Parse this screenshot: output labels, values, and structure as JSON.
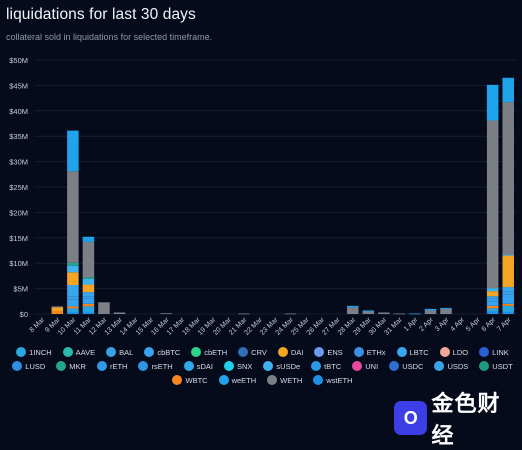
{
  "header": {
    "title": "liquidations for last 30 days",
    "subtitle": "collateral sold in liquidations for selected timeframe."
  },
  "watermark": {
    "logo_text": "O",
    "text": "金色财经"
  },
  "chart_data": {
    "type": "bar",
    "stacked": true,
    "title": "liquidations for last 30 days",
    "subtitle": "collateral sold in liquidations for selected timeframe.",
    "xlabel": "",
    "ylabel": "",
    "ylim": [
      0,
      50
    ],
    "yticks": [
      "$0",
      "$5M",
      "$10M",
      "$15M",
      "$20M",
      "$25M",
      "$30M",
      "$35M",
      "$40M",
      "$45M",
      "$50M"
    ],
    "ytick_values": [
      0,
      5,
      10,
      15,
      20,
      25,
      30,
      35,
      40,
      45,
      50
    ],
    "y_unit": "$M",
    "grid": true,
    "legend_position": "bottom",
    "categories": [
      "8 Mar",
      "9 Mar",
      "10 Mar",
      "11 Mar",
      "12 Mar",
      "13 Mar",
      "14 Mar",
      "15 Mar",
      "16 Mar",
      "17 Mar",
      "18 Mar",
      "19 Mar",
      "20 Mar",
      "21 Mar",
      "22 Mar",
      "23 Mar",
      "24 Mar",
      "25 Mar",
      "26 Mar",
      "27 Mar",
      "28 Mar",
      "29 Mar",
      "30 Mar",
      "31 Mar",
      "1 Apr",
      "2 Apr",
      "3 Apr",
      "4 Apr",
      "5 Apr",
      "6 Apr",
      "7 Apr"
    ],
    "series": [
      {
        "name": "wstETH",
        "color": "#1f8ee6",
        "values": [
          0,
          0,
          0.3,
          0.3,
          0,
          0,
          0,
          0,
          0,
          0,
          0,
          0,
          0,
          0,
          0,
          0,
          0,
          0,
          0,
          0,
          0,
          0,
          0,
          0,
          0,
          0,
          0,
          0,
          0,
          0.5,
          0.4
        ]
      },
      {
        "name": "1INCH",
        "color": "#2aa6e0",
        "values": [
          0,
          0,
          0.8,
          1.2,
          0,
          0,
          0,
          0,
          0,
          0,
          0,
          0,
          0,
          0,
          0,
          0,
          0,
          0,
          0,
          0,
          0,
          0,
          0,
          0,
          0,
          0,
          0,
          0,
          0,
          0.6,
          1.2
        ]
      },
      {
        "name": "WBTC",
        "color": "#f6841f",
        "values": [
          0,
          0.6,
          0.4,
          0.5,
          0,
          0,
          0,
          0,
          0,
          0,
          0,
          0,
          0,
          0,
          0,
          0,
          0,
          0,
          0,
          0,
          0,
          0,
          0,
          0,
          0,
          0,
          0,
          0,
          0,
          0.5,
          0.4
        ]
      },
      {
        "name": "cbBTC",
        "color": "#35a3f0",
        "values": [
          0,
          0,
          1.3,
          1.0,
          0,
          0,
          0,
          0,
          0,
          0,
          0,
          0,
          0,
          0,
          0,
          0,
          0,
          0,
          0,
          0,
          0,
          0,
          0,
          0,
          0,
          0,
          0,
          0,
          0,
          0.9,
          1.8
        ]
      },
      {
        "name": "BAL",
        "color": "#3aa2e8",
        "values": [
          0,
          0,
          0.7,
          0.5,
          0,
          0,
          0,
          0,
          0,
          0,
          0,
          0,
          0,
          0,
          0,
          0,
          0,
          0,
          0,
          0,
          0,
          0,
          0,
          0,
          0,
          0,
          0,
          0,
          0,
          0.6,
          0.6
        ]
      },
      {
        "name": "LBTC",
        "color": "#39a6ee",
        "values": [
          0,
          0,
          2.2,
          0.8,
          0,
          0,
          0,
          0,
          0,
          0,
          0,
          0,
          0,
          0,
          0,
          0,
          0,
          0,
          0,
          0,
          0,
          0,
          0,
          0,
          0,
          0,
          0,
          0,
          0,
          0.4,
          0.9
        ]
      },
      {
        "name": "DAI",
        "color": "#f4a524",
        "values": [
          0,
          0.7,
          2.5,
          1.5,
          0,
          0,
          0,
          0,
          0,
          0,
          0,
          0,
          0,
          0,
          0,
          0,
          0,
          0,
          0,
          0,
          0,
          0,
          0,
          0,
          0,
          0,
          0,
          0,
          0,
          1.0,
          6.2
        ]
      },
      {
        "name": "sUSDe",
        "color": "#3fb2f0",
        "values": [
          0,
          0,
          1.3,
          1.1,
          0,
          0,
          0,
          0,
          0,
          0,
          0,
          0,
          0,
          0,
          0,
          0,
          0,
          0,
          0,
          0,
          0,
          0,
          0,
          0,
          0,
          0,
          0,
          0,
          0,
          0.6,
          0.2
        ]
      },
      {
        "name": "MKR",
        "color": "#25a68d",
        "values": [
          0,
          0,
          0.6,
          0.3,
          0,
          0,
          0,
          0,
          0,
          0,
          0,
          0,
          0,
          0,
          0,
          0,
          0,
          0,
          0,
          0,
          0,
          0,
          0,
          0,
          0,
          0,
          0,
          0,
          0,
          0,
          0
        ]
      },
      {
        "name": "WETH",
        "color": "#7d7f86",
        "values": [
          0,
          0.2,
          18.0,
          7.0,
          2.3,
          0.3,
          0,
          0,
          0.15,
          0,
          0,
          0,
          0,
          0.1,
          0,
          0,
          0.1,
          0,
          0,
          0,
          1.3,
          0.5,
          0.3,
          0.1,
          0,
          0.7,
          1.0,
          0,
          0,
          33.0,
          30.0
        ]
      },
      {
        "name": "weETH",
        "color": "#1fa4ec",
        "values": [
          0,
          0,
          8.0,
          1.0,
          0,
          0,
          0,
          0,
          0,
          0,
          0,
          0,
          0,
          0,
          0,
          0,
          0,
          0,
          0,
          0,
          0.3,
          0.2,
          0,
          0,
          0.1,
          0.3,
          0.2,
          0,
          0,
          7.0,
          4.8
        ]
      }
    ],
    "legend": [
      {
        "name": "1INCH",
        "color": "#2aa6e0"
      },
      {
        "name": "AAVE",
        "color": "#2bb8b0"
      },
      {
        "name": "BAL",
        "color": "#3aa2e8"
      },
      {
        "name": "cbBTC",
        "color": "#35a3f0"
      },
      {
        "name": "cbETH",
        "color": "#2ad488"
      },
      {
        "name": "CRV",
        "color": "#2f6fb8"
      },
      {
        "name": "DAI",
        "color": "#f4a524"
      },
      {
        "name": "ENS",
        "color": "#6e9af0"
      },
      {
        "name": "ETHx",
        "color": "#3c8fe0"
      },
      {
        "name": "LBTC",
        "color": "#39a6ee"
      },
      {
        "name": "LDO",
        "color": "#f0a79a"
      },
      {
        "name": "LINK",
        "color": "#2a5fd6"
      },
      {
        "name": "LUSD",
        "color": "#2c8ee4"
      },
      {
        "name": "MKR",
        "color": "#25a68d"
      },
      {
        "name": "rETH",
        "color": "#2f9ae8"
      },
      {
        "name": "rsETH",
        "color": "#2b95e3"
      },
      {
        "name": "sDAI",
        "color": "#2fa9ea"
      },
      {
        "name": "SNX",
        "color": "#1fd0e8"
      },
      {
        "name": "sUSDe",
        "color": "#3fb2f0"
      },
      {
        "name": "tBTC",
        "color": "#2b98e6"
      },
      {
        "name": "UNI",
        "color": "#e64aa0"
      },
      {
        "name": "USDC",
        "color": "#2e6fd0"
      },
      {
        "name": "USDS",
        "color": "#3aa6ea"
      },
      {
        "name": "USDT",
        "color": "#1f9a7c"
      },
      {
        "name": "WBTC",
        "color": "#f6841f"
      },
      {
        "name": "weETH",
        "color": "#1fa4ec"
      },
      {
        "name": "WETH",
        "color": "#7d7f86"
      },
      {
        "name": "wstETH",
        "color": "#1f8ee6"
      }
    ],
    "colors": {
      "background": "#060b1c",
      "grid": "#161d33",
      "axis_text": "#c8ccd6"
    }
  }
}
